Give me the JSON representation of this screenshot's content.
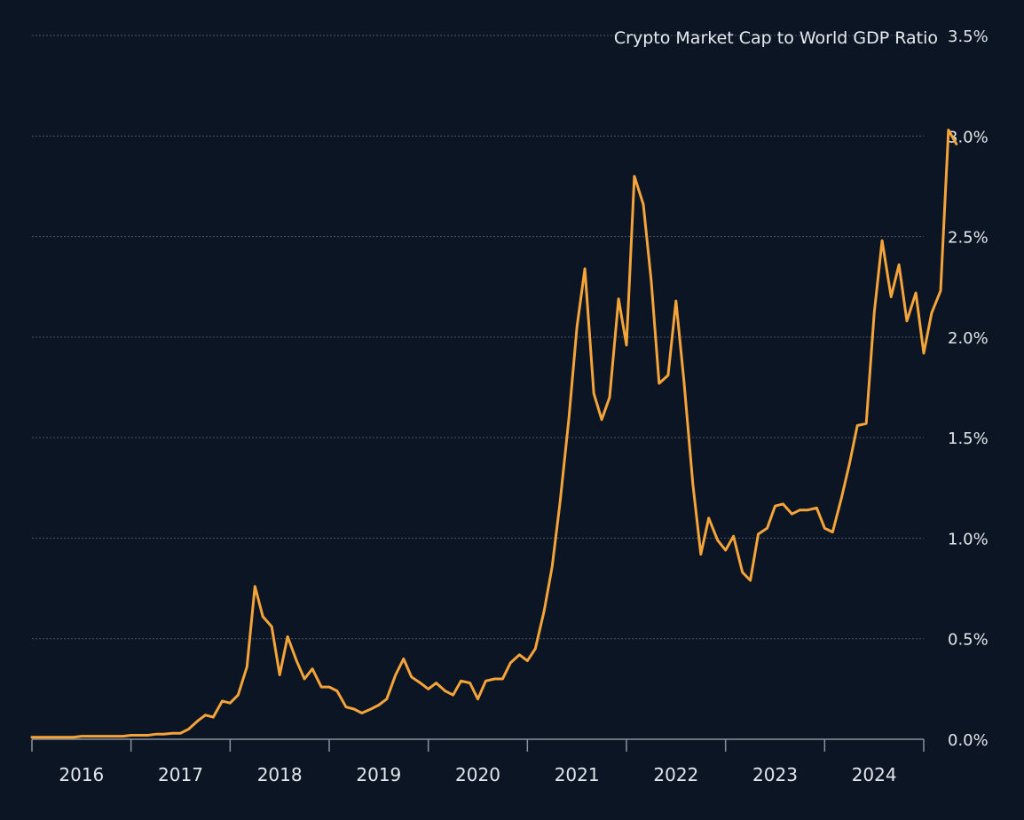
{
  "chart_data": {
    "type": "line",
    "title": "Crypto Market Cap to World GDP Ratio",
    "xlabel": "",
    "ylabel": "",
    "ylim": [
      0,
      3.5
    ],
    "xlim": [
      2015.5,
      2024.5
    ],
    "y_ticks": [
      {
        "value": 0.0,
        "label": "0.0%"
      },
      {
        "value": 0.5,
        "label": "0.5%"
      },
      {
        "value": 1.0,
        "label": "1.0%"
      },
      {
        "value": 1.5,
        "label": "1.5%"
      },
      {
        "value": 2.0,
        "label": "2.0%"
      },
      {
        "value": 2.5,
        "label": "2.5%"
      },
      {
        "value": 3.0,
        "label": "3.0%"
      },
      {
        "value": 3.5,
        "label": "3.5%"
      }
    ],
    "x_ticks": [
      {
        "value": 2016,
        "label": "2016"
      },
      {
        "value": 2017,
        "label": "2017"
      },
      {
        "value": 2018,
        "label": "2018"
      },
      {
        "value": 2019,
        "label": "2019"
      },
      {
        "value": 2020,
        "label": "2020"
      },
      {
        "value": 2021,
        "label": "2021"
      },
      {
        "value": 2022,
        "label": "2022"
      },
      {
        "value": 2023,
        "label": "2023"
      },
      {
        "value": 2024,
        "label": "2024"
      }
    ],
    "x_bounds": [
      2015.5,
      2016.5,
      2017.5,
      2018.5,
      2019.5,
      2020.5,
      2021.5,
      2022.5,
      2023.5,
      2024.5
    ],
    "grid": true,
    "colors": {
      "line": "#f5a43a",
      "background": "#0b1523"
    },
    "series": [
      {
        "name": "Crypto Market Cap to World GDP Ratio",
        "points": [
          [
            2015.5,
            0.01
          ],
          [
            2015.58,
            0.01
          ],
          [
            2015.67,
            0.01
          ],
          [
            2015.75,
            0.01
          ],
          [
            2015.83,
            0.01
          ],
          [
            2015.92,
            0.01
          ],
          [
            2016.0,
            0.015
          ],
          [
            2016.08,
            0.015
          ],
          [
            2016.17,
            0.015
          ],
          [
            2016.25,
            0.015
          ],
          [
            2016.33,
            0.015
          ],
          [
            2016.42,
            0.015
          ],
          [
            2016.5,
            0.02
          ],
          [
            2016.58,
            0.02
          ],
          [
            2016.67,
            0.02
          ],
          [
            2016.75,
            0.025
          ],
          [
            2016.83,
            0.025
          ],
          [
            2016.92,
            0.03
          ],
          [
            2017.0,
            0.03
          ],
          [
            2017.08,
            0.05
          ],
          [
            2017.17,
            0.09
          ],
          [
            2017.25,
            0.12
          ],
          [
            2017.33,
            0.11
          ],
          [
            2017.42,
            0.19
          ],
          [
            2017.5,
            0.18
          ],
          [
            2017.58,
            0.22
          ],
          [
            2017.67,
            0.36
          ],
          [
            2017.75,
            0.76
          ],
          [
            2017.83,
            0.61
          ],
          [
            2017.92,
            0.56
          ],
          [
            2018.0,
            0.32
          ],
          [
            2018.08,
            0.51
          ],
          [
            2018.17,
            0.39
          ],
          [
            2018.25,
            0.3
          ],
          [
            2018.33,
            0.35
          ],
          [
            2018.42,
            0.26
          ],
          [
            2018.5,
            0.26
          ],
          [
            2018.58,
            0.24
          ],
          [
            2018.67,
            0.16
          ],
          [
            2018.75,
            0.15
          ],
          [
            2018.83,
            0.13
          ],
          [
            2018.92,
            0.15
          ],
          [
            2019.0,
            0.17
          ],
          [
            2019.08,
            0.2
          ],
          [
            2019.17,
            0.32
          ],
          [
            2019.25,
            0.4
          ],
          [
            2019.33,
            0.31
          ],
          [
            2019.42,
            0.28
          ],
          [
            2019.5,
            0.25
          ],
          [
            2019.58,
            0.28
          ],
          [
            2019.67,
            0.24
          ],
          [
            2019.75,
            0.22
          ],
          [
            2019.83,
            0.29
          ],
          [
            2019.92,
            0.28
          ],
          [
            2020.0,
            0.2
          ],
          [
            2020.08,
            0.29
          ],
          [
            2020.17,
            0.3
          ],
          [
            2020.25,
            0.3
          ],
          [
            2020.33,
            0.38
          ],
          [
            2020.42,
            0.42
          ],
          [
            2020.5,
            0.39
          ],
          [
            2020.58,
            0.45
          ],
          [
            2020.67,
            0.64
          ],
          [
            2020.75,
            0.86
          ],
          [
            2020.83,
            1.18
          ],
          [
            2020.92,
            1.6
          ],
          [
            2021.0,
            2.05
          ],
          [
            2021.08,
            2.34
          ],
          [
            2021.17,
            1.72
          ],
          [
            2021.25,
            1.59
          ],
          [
            2021.33,
            1.7
          ],
          [
            2021.42,
            2.19
          ],
          [
            2021.5,
            1.96
          ],
          [
            2021.58,
            2.8
          ],
          [
            2021.67,
            2.66
          ],
          [
            2021.75,
            2.28
          ],
          [
            2021.83,
            1.77
          ],
          [
            2021.92,
            1.81
          ],
          [
            2022.0,
            2.18
          ],
          [
            2022.08,
            1.78
          ],
          [
            2022.17,
            1.27
          ],
          [
            2022.25,
            0.92
          ],
          [
            2022.33,
            1.1
          ],
          [
            2022.42,
            0.99
          ],
          [
            2022.5,
            0.94
          ],
          [
            2022.58,
            1.01
          ],
          [
            2022.67,
            0.83
          ],
          [
            2022.75,
            0.79
          ],
          [
            2022.83,
            1.02
          ],
          [
            2022.92,
            1.05
          ],
          [
            2023.0,
            1.16
          ],
          [
            2023.08,
            1.17
          ],
          [
            2023.17,
            1.12
          ],
          [
            2023.25,
            1.14
          ],
          [
            2023.33,
            1.14
          ],
          [
            2023.42,
            1.15
          ],
          [
            2023.5,
            1.05
          ],
          [
            2023.58,
            1.03
          ],
          [
            2023.67,
            1.2
          ],
          [
            2023.75,
            1.37
          ],
          [
            2023.83,
            1.56
          ],
          [
            2023.92,
            1.57
          ],
          [
            2024.0,
            2.12
          ],
          [
            2024.08,
            2.48
          ],
          [
            2024.17,
            2.2
          ],
          [
            2024.25,
            2.36
          ],
          [
            2024.33,
            2.08
          ],
          [
            2024.42,
            2.22
          ],
          [
            2024.5,
            1.92
          ],
          [
            2024.58,
            2.12
          ],
          [
            2024.67,
            2.23
          ],
          [
            2024.75,
            3.03
          ],
          [
            2024.83,
            2.96
          ]
        ]
      }
    ]
  }
}
